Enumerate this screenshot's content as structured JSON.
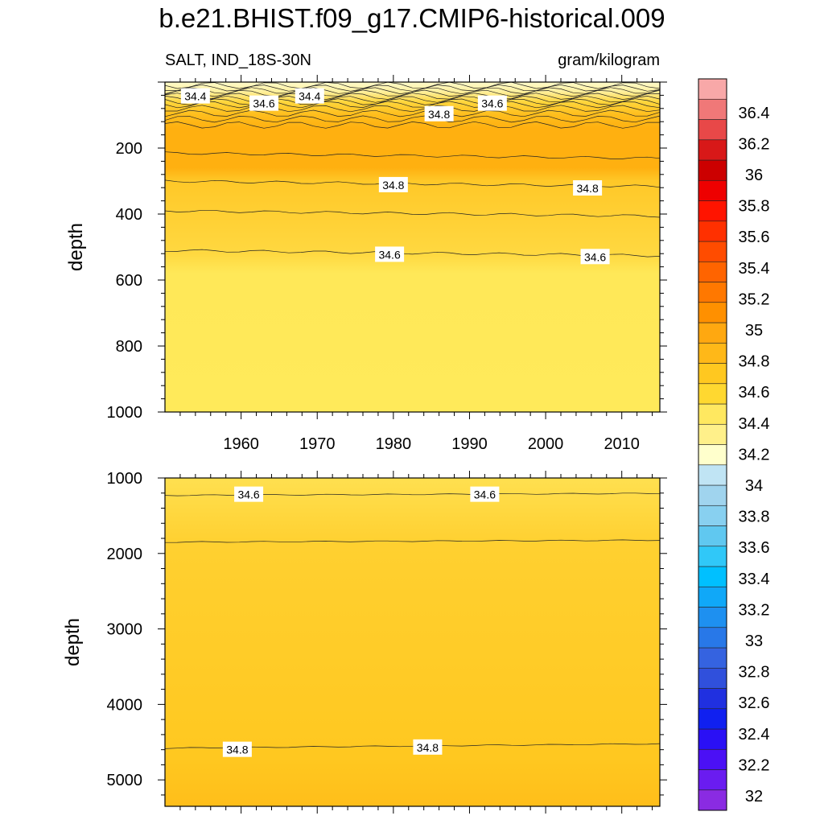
{
  "title": "b.e21.BHIST.f09_g17.CMIP6-historical.009",
  "chart_data": [
    {
      "type": "contour",
      "variable_label": "SALT, IND_18S-30N",
      "units_label": "gram/kilogram",
      "ylabel": "depth",
      "xlim": [
        1950,
        2015
      ],
      "ylim": [
        1000,
        0
      ],
      "x_ticks": [
        1960,
        1970,
        1980,
        1990,
        2000,
        2010
      ],
      "y_ticks": [
        200,
        400,
        600,
        800,
        1000
      ],
      "contour_labels": [
        {
          "text": "34.4",
          "x": 1954,
          "depth": 43
        },
        {
          "text": "34.6",
          "x": 1963,
          "depth": 65
        },
        {
          "text": "34.4",
          "x": 1969,
          "depth": 43
        },
        {
          "text": "34.8",
          "x": 1986,
          "depth": 97
        },
        {
          "text": "34.6",
          "x": 1993,
          "depth": 65
        },
        {
          "text": "34.8",
          "x": 1980,
          "depth": 312
        },
        {
          "text": "34.8",
          "x": 2005.5,
          "depth": 322
        },
        {
          "text": "34.6",
          "x": 1979.5,
          "depth": 523
        },
        {
          "text": "34.6",
          "x": 2006.5,
          "depth": 530
        }
      ]
    },
    {
      "type": "contour",
      "ylabel": "depth",
      "xlim": [
        1950,
        2015
      ],
      "ylim": [
        5350,
        1000
      ],
      "x_ticks": [
        1960,
        1970,
        1980,
        1990,
        2000,
        2010
      ],
      "y_ticks": [
        1000,
        2000,
        3000,
        4000,
        5000
      ],
      "contour_labels": [
        {
          "text": "34.6",
          "x": 1961,
          "depth": 1220
        },
        {
          "text": "34.6",
          "x": 1992,
          "depth": 1220
        },
        {
          "text": "34.8",
          "x": 1959.5,
          "depth": 4600
        },
        {
          "text": "34.8",
          "x": 1984.5,
          "depth": 4570
        }
      ]
    }
  ],
  "colorbar": {
    "levels": [
      "32",
      "32.2",
      "32.4",
      "32.6",
      "32.8",
      "33",
      "33.2",
      "33.4",
      "33.6",
      "33.8",
      "34",
      "34.2",
      "34.4",
      "34.6",
      "34.8",
      "35",
      "35.2",
      "35.4",
      "35.6",
      "35.8",
      "36",
      "36.2",
      "36.4"
    ],
    "colors": [
      "#8a2be2",
      "#6a1cf0",
      "#4b10f5",
      "#2a10f5",
      "#1020f0",
      "#2030e0",
      "#3050dc",
      "#3563e0",
      "#2878e8",
      "#1e90f0",
      "#10a8f8",
      "#00c0ff",
      "#30c8f8",
      "#60c8f0",
      "#88d0f0",
      "#a0d4ee",
      "#c0e4f4",
      "#ffffcc",
      "#fff08a",
      "#ffe860",
      "#ffd830",
      "#ffc820",
      "#ffb818",
      "#ffa810",
      "#ff9000",
      "#ff7800",
      "#ff6400",
      "#ff4c00",
      "#ff3000",
      "#ff1400",
      "#ee0000",
      "#cc0000",
      "#d81818",
      "#e84848",
      "#f07878",
      "#f8a8a8"
    ]
  }
}
